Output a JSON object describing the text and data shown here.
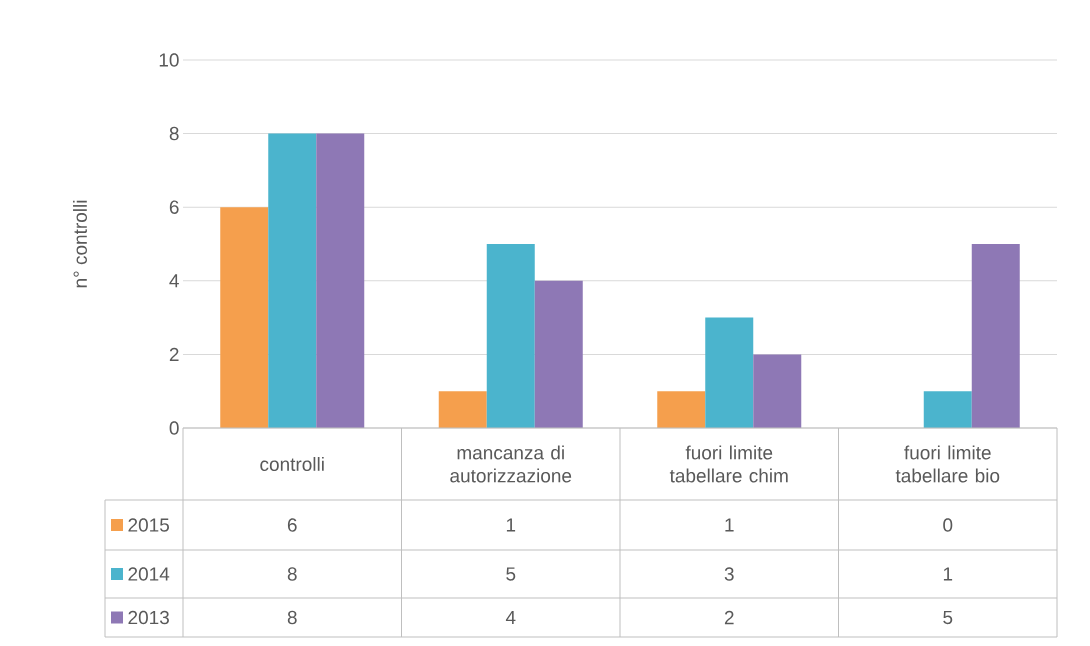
{
  "chart_data": {
    "type": "bar",
    "ylabel": "n° controlli",
    "categories": [
      "controlli",
      "mancanza di autorizzazione",
      "fuori limite tabellare chim",
      "fuori limite tabellare bio"
    ],
    "series": [
      {
        "name": "2015",
        "color": "#f59f4d",
        "values": [
          6,
          1,
          1,
          0
        ]
      },
      {
        "name": "2014",
        "color": "#4bb4cd",
        "values": [
          8,
          5,
          3,
          1
        ]
      },
      {
        "name": "2013",
        "color": "#8e78b5",
        "values": [
          8,
          4,
          2,
          5
        ]
      }
    ],
    "ylim": [
      0,
      10
    ],
    "yticks": [
      0,
      2,
      4,
      6,
      8,
      10
    ],
    "grid": "y",
    "legend": "bottom",
    "data_labels": true
  }
}
